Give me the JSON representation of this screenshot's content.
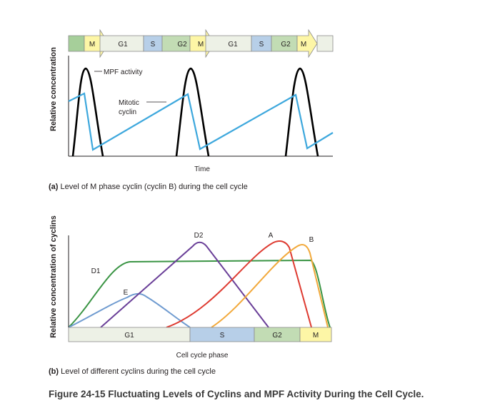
{
  "panel_a": {
    "ylabel": "Relative concentration",
    "xlabel": "Time",
    "caption_tag": "(a)",
    "caption_text": "Level of M phase cyclin (cyclin B) during the cell cycle",
    "label_mpf": "MPF activity",
    "label_cyclin_1": "Mitotic",
    "label_cyclin_2": "cyclin",
    "phase_bar": [
      "M",
      "G1",
      "S",
      "G2",
      "M",
      "G1",
      "S",
      "G2",
      "M"
    ],
    "colors": {
      "M": "#fdf6a6",
      "G1": "#edf1e6",
      "S": "#b7cfe8",
      "G2": "#c2dcb4",
      "mpf": "#000000",
      "cyclin": "#3ea8dd"
    }
  },
  "panel_b": {
    "ylabel": "Relative concentration of cyclins",
    "xlabel": "Cell cycle phase",
    "caption_tag": "(b)",
    "caption_text": "Level of different cyclins during the cell cycle",
    "phases": [
      "G1",
      "S",
      "G2",
      "M"
    ],
    "curve_labels": {
      "D1": "D1",
      "E": "E",
      "D2": "D2",
      "A": "A",
      "B": "B"
    },
    "colors": {
      "D1": "#3a9444",
      "E": "#6f9bd0",
      "D2": "#6a3f98",
      "A": "#de3b31",
      "B": "#f2a93b"
    }
  },
  "figure_title": "Figure 24-15 Fluctuating Levels of Cyclins and MPF Activity During the Cell Cycle."
}
